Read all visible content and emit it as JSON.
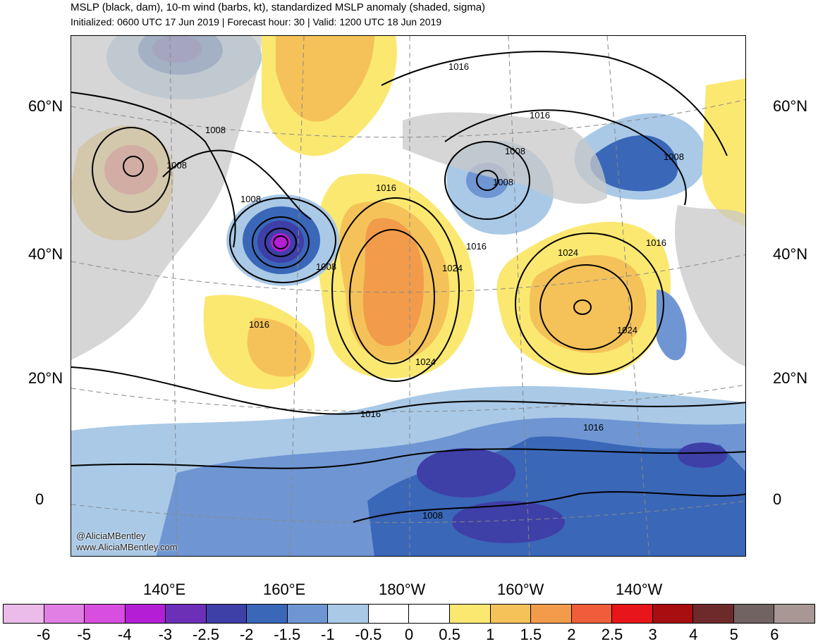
{
  "header": {
    "title": "MSLP (black, dam), 10-m wind (barbs, kt), standardized MSLP anomaly (shaded, sigma)",
    "subtitle": "Initialized: 0600 UTC 17 Jun 2019 | Forecast hour: 30 | Valid: 1200 UTC 18 Jun 2019"
  },
  "map": {
    "lat_labels_left": [
      "60°N",
      "40°N",
      "20°N",
      "0"
    ],
    "lat_labels_right": [
      "60°N",
      "40°N",
      "20°N",
      "0"
    ],
    "lon_labels": [
      "140°E",
      "160°E",
      "180°W",
      "160°W",
      "140°W"
    ],
    "isobar_labels": [
      "1016",
      "1008",
      "1008",
      "1008",
      "1016",
      "1008",
      "1008",
      "1008",
      "1016",
      "1008",
      "1016",
      "1024",
      "1024",
      "1016",
      "1024",
      "1024",
      "1016",
      "1016",
      "1008",
      "1016"
    ],
    "watermark": [
      "@AliciaMBentley",
      "www.AliciaMBentley.com"
    ]
  },
  "colorbar": {
    "labels": [
      "-6",
      "-5",
      "-4",
      "-3",
      "-2.5",
      "-2",
      "-1.5",
      "-1",
      "-0.5",
      "0",
      "0.5",
      "1",
      "1.5",
      "2",
      "2.5",
      "3",
      "4",
      "5",
      "6"
    ],
    "colors": [
      "#ebbbe9",
      "#e27fe4",
      "#d84ede",
      "#b41fd6",
      "#6c2fb8",
      "#3f3fa8",
      "#3a67b8",
      "#6f96d3",
      "#a9c9e7",
      "#ffffff",
      "#ffffff",
      "#fbe871",
      "#f4c259",
      "#f29c4b",
      "#ef5d3a",
      "#e8161a",
      "#a80d10",
      "#6e2a2a",
      "#716361",
      "#a89795"
    ]
  },
  "palette": {
    "land": "#c8c8c8",
    "ocean": "#ffffff",
    "isobar": "#000000",
    "grid": "#888888"
  }
}
